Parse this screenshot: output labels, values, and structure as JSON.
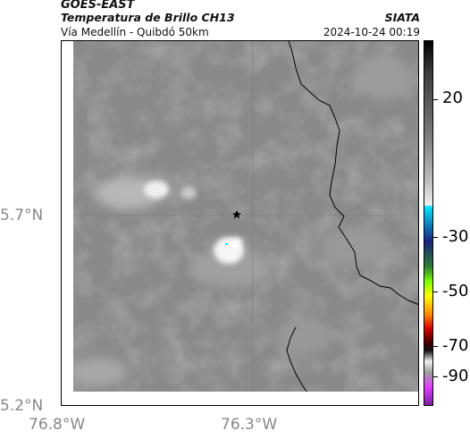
{
  "header": {
    "satellite": "GOES-EAST",
    "product": "Temperatura de Brillo CH13",
    "region": "Vía Medellín - Quibdó 50km",
    "source": "SIATA",
    "datetime": "2024-10-24 00:19"
  },
  "axes": {
    "lat_ticks": [
      "5.7°N",
      "5.2°N"
    ],
    "lon_ticks": [
      "76.8°W",
      "76.3°W"
    ]
  },
  "colorbar": {
    "ticks": [
      "20",
      "-30",
      "-50",
      "-70",
      "-90"
    ],
    "colors": [
      "#000000",
      "#3a3a3a",
      "#777777",
      "#bbbbbb",
      "#eeeeee",
      "#00e5ff",
      "#1a237e",
      "#2e7d32",
      "#7cff00",
      "#ffff00",
      "#ff8c00",
      "#d50000",
      "#400000",
      "#111111",
      "#f0f0f0",
      "#9e9e9e",
      "#e040fb",
      "#7b1fa2"
    ]
  },
  "map": {
    "marker": "star",
    "marker_color": "#000000",
    "background_color": "#8a8a8a"
  }
}
